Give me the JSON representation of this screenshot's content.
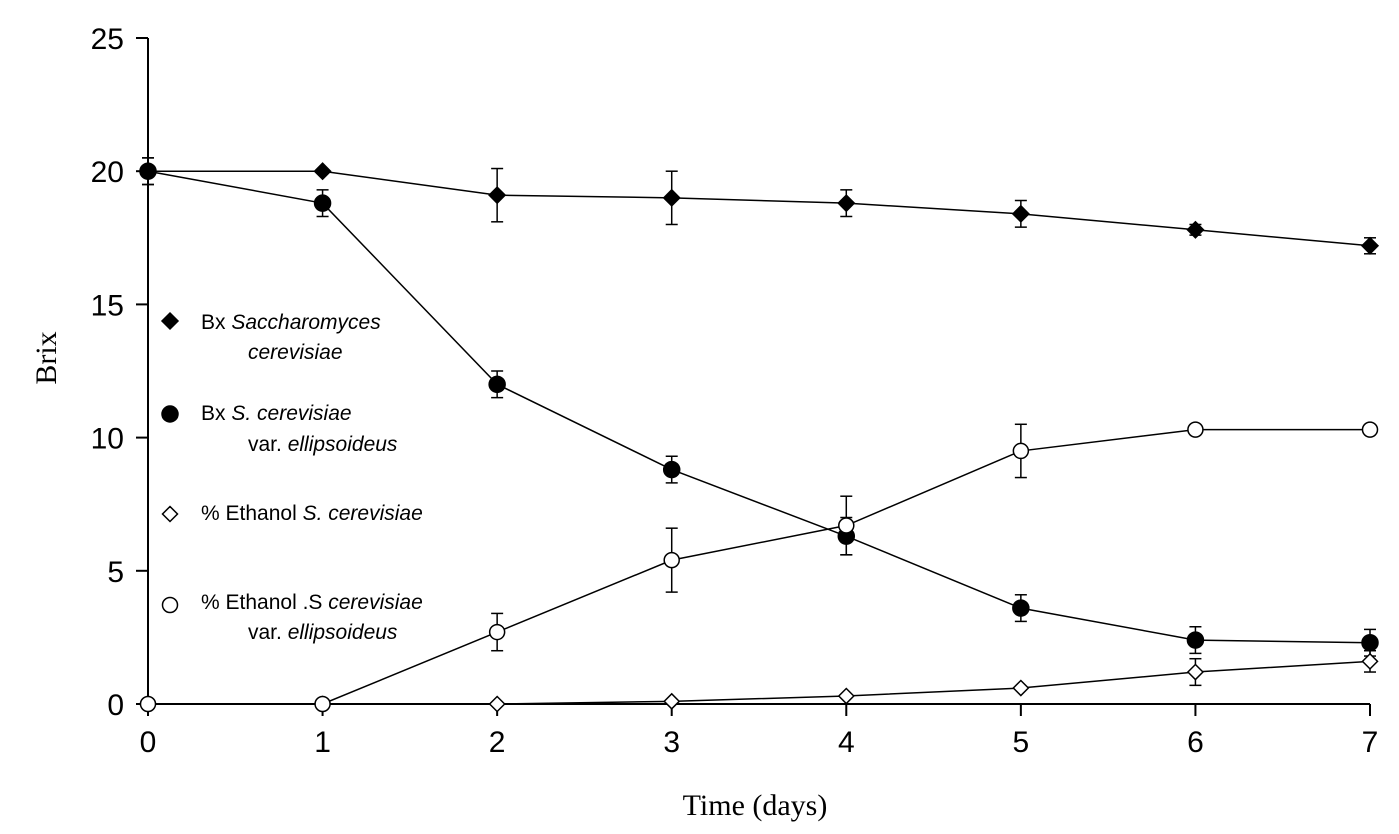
{
  "chart_data": {
    "type": "line",
    "xlabel": "Time (days)",
    "ylabel": "Brix",
    "xlim": [
      0,
      7
    ],
    "ylim": [
      0,
      25
    ],
    "x_ticks": [
      0,
      1,
      2,
      3,
      4,
      5,
      6,
      7
    ],
    "y_ticks": [
      0,
      5,
      10,
      15,
      20,
      25
    ],
    "grid": false,
    "legend_position": "left",
    "x": [
      0,
      1,
      2,
      3,
      4,
      5,
      6,
      7
    ],
    "series": [
      {
        "marker": "diamond-filled",
        "values": [
          20.0,
          20.0,
          19.1,
          19.0,
          18.8,
          18.4,
          17.8,
          17.2
        ],
        "errors": [
          0.5,
          0.0,
          1.0,
          1.0,
          0.5,
          0.5,
          0.2,
          0.3
        ]
      },
      {
        "marker": "circle-filled",
        "values": [
          20.0,
          18.8,
          12.0,
          8.8,
          6.3,
          3.6,
          2.4,
          2.3
        ],
        "errors": [
          0.5,
          0.5,
          0.5,
          0.5,
          0.7,
          0.5,
          0.5,
          0.5
        ]
      },
      {
        "marker": "diamond-open",
        "values": [
          0.0,
          0.0,
          0.0,
          0.1,
          0.3,
          0.6,
          1.2,
          1.6
        ],
        "errors": [
          0.0,
          0.0,
          0.0,
          0.0,
          0.0,
          0.0,
          0.5,
          0.4
        ]
      },
      {
        "marker": "circle-open",
        "values": [
          0.0,
          0.0,
          2.7,
          5.4,
          6.7,
          9.5,
          10.3,
          10.3
        ],
        "errors": [
          0.0,
          0.0,
          0.7,
          1.2,
          1.1,
          1.0,
          0.0,
          0.0
        ]
      }
    ],
    "legend": [
      {
        "parts": [
          {
            "text": "Bx ",
            "italic": false
          },
          {
            "text": "Saccharomyces",
            "italic": true
          }
        ],
        "line2": [
          {
            "text": "cerevisiae",
            "italic": true
          }
        ]
      },
      {
        "parts": [
          {
            "text": "Bx ",
            "italic": false
          },
          {
            "text": "S. cerevisiae",
            "italic": true
          }
        ],
        "line2": [
          {
            "text": "var. ",
            "italic": false
          },
          {
            "text": "ellipsoideus",
            "italic": true
          }
        ]
      },
      {
        "parts": [
          {
            "text": "% Ethanol ",
            "italic": false
          },
          {
            "text": "S. cerevisiae",
            "italic": true
          }
        ],
        "line2": []
      },
      {
        "parts": [
          {
            "text": "% Ethanol .S ",
            "italic": false
          },
          {
            "text": "cerevisiae",
            "italic": true
          }
        ],
        "line2": [
          {
            "text": "var. ",
            "italic": false
          },
          {
            "text": "ellipsoideus",
            "italic": true
          }
        ]
      }
    ]
  }
}
